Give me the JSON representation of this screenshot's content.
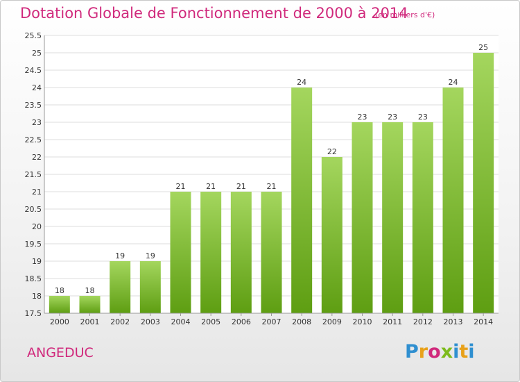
{
  "header": {
    "title": "Dotation Globale de Fonctionnement de 2000 à 2014",
    "unit": "(en milliers d'€)"
  },
  "footer": {
    "commune": "ANGEDUC",
    "logo_text": "Proxiti",
    "logo_colors": [
      "#2f8fd0",
      "#e8a11a",
      "#d0297c",
      "#7dbb1c",
      "#2f8fd0",
      "#e8a11a",
      "#2f8fd0"
    ]
  },
  "colors": {
    "bar_top": "#a4d65e",
    "bar_bottom": "#5e9e12",
    "grid": "#dddddd",
    "axis": "#999999",
    "text": "#333333",
    "title": "#d0297c"
  },
  "chart_data": {
    "type": "bar",
    "title": "Dotation Globale de Fonctionnement de 2000 à 2014",
    "xlabel": "",
    "ylabel": "",
    "categories": [
      "2000",
      "2001",
      "2002",
      "2003",
      "2004",
      "2005",
      "2006",
      "2007",
      "2008",
      "2009",
      "2010",
      "2011",
      "2012",
      "2013",
      "2014"
    ],
    "values": [
      18,
      18,
      19,
      19,
      21,
      21,
      21,
      21,
      24,
      22,
      23,
      23,
      23,
      24,
      25
    ],
    "data_labels": [
      "18",
      "18",
      "19",
      "19",
      "21",
      "21",
      "21",
      "21",
      "24",
      "22",
      "23",
      "23",
      "23",
      "24",
      "25"
    ],
    "ylim": [
      17.5,
      25.5
    ],
    "yticks": [
      17.5,
      18,
      18.5,
      19,
      19.5,
      20,
      20.5,
      21,
      21.5,
      22,
      22.5,
      23,
      23.5,
      24,
      24.5,
      25,
      25.5
    ],
    "ytick_labels": [
      "17.5",
      "18",
      "18.5",
      "19",
      "19.5",
      "20",
      "20.5",
      "21",
      "21.5",
      "22",
      "22.5",
      "23",
      "23.5",
      "24",
      "24.5",
      "25",
      "25.5"
    ],
    "grid": true,
    "legend": "none"
  }
}
